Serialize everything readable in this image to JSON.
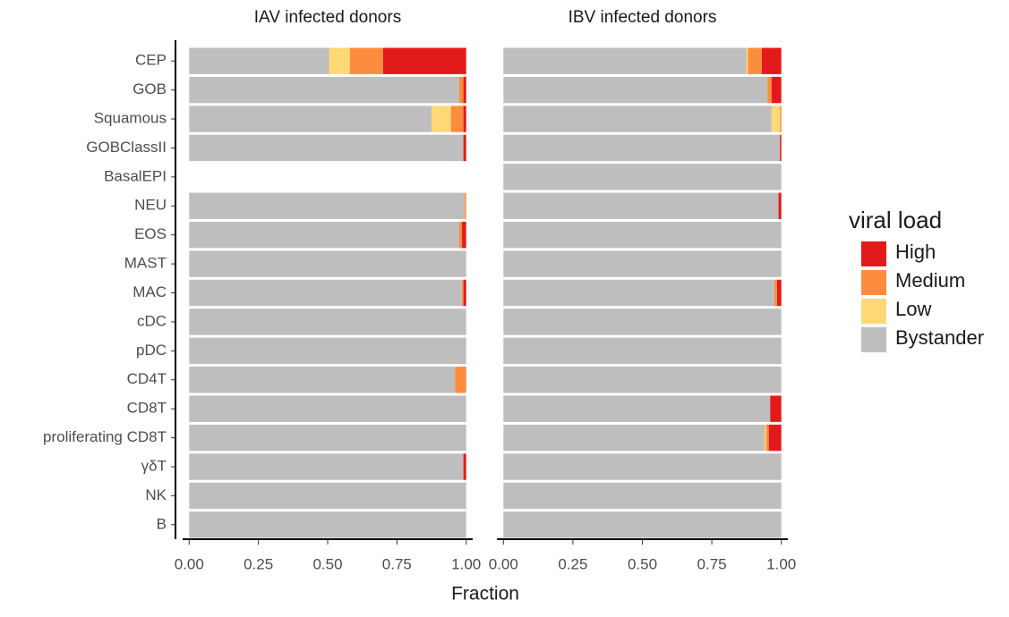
{
  "chart_data": [
    {
      "type": "bar",
      "orientation": "horizontal",
      "stacked": true,
      "title": "IAV infected donors",
      "xlabel": "Fraction",
      "legend_title": "viral load",
      "categories": [
        "CEP",
        "GOB",
        "Squamous",
        "GOBClassII",
        "BasalEPI",
        "NEU",
        "EOS",
        "MAST",
        "MAC",
        "cDC",
        "pDC",
        "CD4T",
        "CD8T",
        "proliferating CD8T",
        "γδT",
        "NK",
        "B"
      ],
      "xlim": [
        -0.03,
        1.03
      ],
      "xticks": [
        {
          "value": 0,
          "label": "0.00"
        },
        {
          "value": 0.25,
          "label": "0.25"
        },
        {
          "value": 0.5,
          "label": "0.50"
        },
        {
          "value": 0.75,
          "label": "0.75"
        },
        {
          "value": 1,
          "label": "1.00"
        }
      ],
      "series": [
        {
          "name": "High",
          "color": "#e31a1c",
          "values": [
            0.3,
            0.01,
            0.01,
            0.01,
            null,
            0,
            0.015,
            0,
            0.01,
            0,
            0,
            0,
            0,
            0,
            0.01,
            0,
            0
          ]
        },
        {
          "name": "Medium",
          "color": "#fd8d3c",
          "values": [
            0.12,
            0.015,
            0.045,
            0,
            null,
            0.005,
            0.01,
            0,
            0.005,
            0,
            0,
            0.04,
            0,
            0,
            0,
            0,
            0
          ]
        },
        {
          "name": "Low",
          "color": "#fed976",
          "values": [
            0.075,
            0,
            0.07,
            0,
            null,
            0,
            0,
            0,
            0,
            0,
            0,
            0,
            0,
            0,
            0,
            0,
            0
          ]
        },
        {
          "name": "Bystander",
          "color": "#bebebe",
          "values": [
            0.505,
            0.975,
            0.875,
            0.99,
            null,
            0.995,
            0.975,
            1,
            0.985,
            1,
            1,
            0.96,
            1,
            1,
            0.99,
            1,
            1
          ]
        }
      ]
    },
    {
      "type": "bar",
      "orientation": "horizontal",
      "stacked": true,
      "title": "IBV infected donors",
      "xlim": [
        -0.03,
        1.03
      ],
      "xticks": [
        {
          "value": 0,
          "label": "0.00"
        },
        {
          "value": 0.25,
          "label": "0.25"
        },
        {
          "value": 0.5,
          "label": "0.50"
        },
        {
          "value": 0.75,
          "label": "0.75"
        },
        {
          "value": 1,
          "label": "1.00"
        }
      ],
      "series": [
        {
          "color": "#e31a1c",
          "values": [
            0.07,
            0.035,
            0,
            0.005,
            0,
            0.01,
            0,
            0,
            0.015,
            0,
            0,
            0,
            0.04,
            0.045,
            0,
            0,
            0
          ]
        },
        {
          "color": "#fd8d3c",
          "values": [
            0.05,
            0.015,
            0.005,
            0,
            0,
            0,
            0,
            0,
            0.01,
            0,
            0,
            0,
            0,
            0.01,
            0,
            0,
            0
          ]
        },
        {
          "color": "#fed976",
          "values": [
            0.005,
            0,
            0.03,
            0,
            0,
            0,
            0,
            0,
            0,
            0,
            0,
            0,
            0,
            0.005,
            0,
            0,
            0
          ]
        },
        {
          "color": "#bebebe",
          "values": [
            0.875,
            0.95,
            0.965,
            0.995,
            1,
            0.99,
            1,
            1,
            0.975,
            1,
            1,
            1,
            0.96,
            0.94,
            1,
            1,
            1
          ]
        }
      ]
    }
  ]
}
